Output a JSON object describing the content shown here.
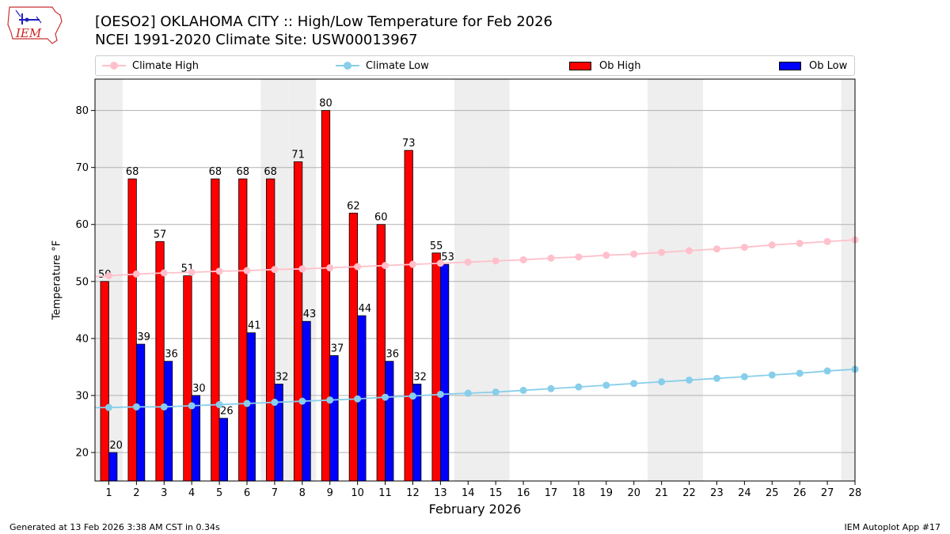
{
  "header": {
    "title_line1": "[OESO2] OKLAHOMA CITY :: High/Low Temperature for Feb 2026",
    "title_line2": "NCEI 1991-2020 Climate Site: USW00013967"
  },
  "logo": {
    "text": "IEM"
  },
  "footer": {
    "left": "Generated at 13 Feb 2026 3:38 AM CST in 0.34s",
    "right": "IEM Autoplot App #17"
  },
  "legend": [
    {
      "label": "Climate High",
      "kind": "line",
      "color": "#ffc0cb"
    },
    {
      "label": "Climate Low",
      "kind": "line",
      "color": "#87ceeb"
    },
    {
      "label": "Ob High",
      "kind": "bar",
      "color": "#ff0000"
    },
    {
      "label": "Ob Low",
      "kind": "bar",
      "color": "#0000ff"
    }
  ],
  "colors": {
    "ob_high": "#ff0000",
    "ob_low": "#0000ff",
    "climate_high": "#ffc0cb",
    "climate_low": "#87ceeb",
    "weekend_shade": "#eeeeee",
    "grid": "#b0b0b0"
  },
  "chart_data": {
    "type": "bar",
    "xlabel": "February 2026",
    "ylabel": "Temperature °F",
    "ylim": [
      15,
      85.5
    ],
    "yticks": [
      20,
      30,
      40,
      50,
      60,
      70,
      80
    ],
    "grid": "horizontal",
    "legend_position": "top",
    "days": [
      1,
      2,
      3,
      4,
      5,
      6,
      7,
      8,
      9,
      10,
      11,
      12,
      13,
      14,
      15,
      16,
      17,
      18,
      19,
      20,
      21,
      22,
      23,
      24,
      25,
      26,
      27,
      28
    ],
    "weekend_days": [
      1,
      7,
      8,
      14,
      15,
      21,
      22,
      28
    ],
    "ob_high": [
      50,
      68,
      57,
      51,
      68,
      68,
      68,
      71,
      80,
      62,
      60,
      73,
      55
    ],
    "ob_low": [
      20,
      39,
      36,
      30,
      26,
      41,
      32,
      43,
      37,
      44,
      36,
      32,
      53
    ],
    "climate_high": [
      51.0,
      51.3,
      51.5,
      51.6,
      51.8,
      51.9,
      52.1,
      52.2,
      52.4,
      52.6,
      52.8,
      53.0,
      53.2,
      53.4,
      53.6,
      53.8,
      54.1,
      54.3,
      54.6,
      54.8,
      55.1,
      55.4,
      55.7,
      56.0,
      56.4,
      56.7,
      57.0,
      57.3
    ],
    "climate_low": [
      27.9,
      28.0,
      28.0,
      28.2,
      28.4,
      28.6,
      28.8,
      29.0,
      29.2,
      29.4,
      29.7,
      29.9,
      30.2,
      30.4,
      30.6,
      30.9,
      31.2,
      31.5,
      31.8,
      32.1,
      32.4,
      32.7,
      33.0,
      33.3,
      33.6,
      33.9,
      34.3,
      34.6
    ]
  }
}
